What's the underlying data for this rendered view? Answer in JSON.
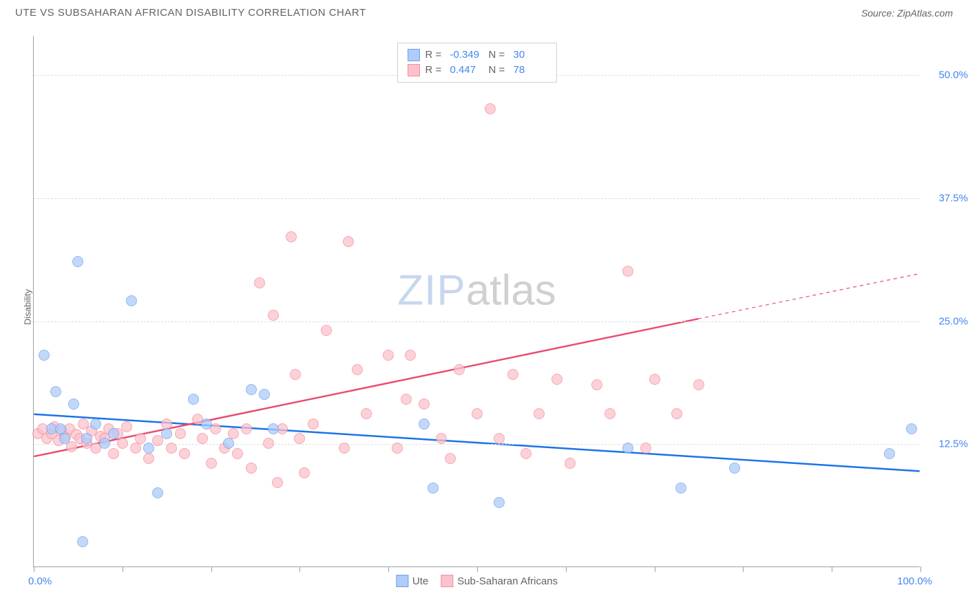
{
  "title": "UTE VS SUBSAHARAN AFRICAN DISABILITY CORRELATION CHART",
  "source": "Source: ZipAtlas.com",
  "ylabel": "Disability",
  "watermark_zip": "ZIP",
  "watermark_atlas": "atlas",
  "chart": {
    "type": "scatter",
    "background_color": "#ffffff",
    "grid_color": "#dadce0",
    "axis_color": "#9aa0a6",
    "xlim": [
      0,
      100
    ],
    "ylim": [
      0,
      54
    ],
    "ytick_values": [
      12.5,
      25.0,
      37.5,
      50.0
    ],
    "ytick_labels": [
      "12.5%",
      "25.0%",
      "37.5%",
      "50.0%"
    ],
    "xtick_positions": [
      0,
      10,
      20,
      30,
      40,
      50,
      60,
      70,
      80,
      90,
      100
    ],
    "xtick_label_left": "0.0%",
    "xtick_label_right": "100.0%",
    "tick_label_color": "#4285f4",
    "tick_label_fontsize": 15,
    "point_radius": 8,
    "point_opacity": 0.75
  },
  "series": [
    {
      "name": "Ute",
      "fill": "#aecbfa",
      "stroke": "#6fa1e8",
      "trend": {
        "x1": 0,
        "y1": 15.5,
        "x2": 100,
        "y2": 9.7,
        "color": "#1a73e8",
        "width": 2.5
      },
      "R": "-0.349",
      "N": "30",
      "points": [
        [
          1.2,
          21.5
        ],
        [
          2.0,
          14.0
        ],
        [
          2.5,
          17.8
        ],
        [
          3.0,
          14.0
        ],
        [
          3.5,
          13.0
        ],
        [
          4.5,
          16.5
        ],
        [
          5.0,
          31.0
        ],
        [
          5.5,
          2.5
        ],
        [
          6.0,
          13.0
        ],
        [
          7.0,
          14.5
        ],
        [
          8.0,
          12.5
        ],
        [
          9.0,
          13.5
        ],
        [
          11.0,
          27.0
        ],
        [
          13.0,
          12.0
        ],
        [
          14.0,
          7.5
        ],
        [
          15.0,
          13.5
        ],
        [
          18.0,
          17.0
        ],
        [
          19.5,
          14.5
        ],
        [
          22.0,
          12.5
        ],
        [
          24.5,
          18.0
        ],
        [
          26.0,
          17.5
        ],
        [
          27.0,
          14.0
        ],
        [
          44.0,
          14.5
        ],
        [
          45.0,
          8.0
        ],
        [
          52.5,
          6.5
        ],
        [
          67.0,
          12.0
        ],
        [
          73.0,
          8.0
        ],
        [
          79.0,
          10.0
        ],
        [
          96.5,
          11.5
        ],
        [
          99.0,
          14.0
        ]
      ]
    },
    {
      "name": "Sub-Saharan Africans",
      "fill": "#fbc2cc",
      "stroke": "#f28b9b",
      "trend": {
        "x1": 0,
        "y1": 11.2,
        "x2": 75,
        "y2": 25.2,
        "color": "#ea4c70",
        "width": 2.5,
        "dash_x1": 75,
        "dash_y1": 25.2,
        "dash_x2": 100,
        "dash_y2": 29.8
      },
      "R": "0.447",
      "N": "78",
      "points": [
        [
          0.5,
          13.5
        ],
        [
          1.0,
          14.0
        ],
        [
          1.5,
          13.0
        ],
        [
          2.0,
          13.5
        ],
        [
          2.3,
          14.2
        ],
        [
          2.8,
          12.8
        ],
        [
          3.2,
          13.8
        ],
        [
          3.6,
          13.2
        ],
        [
          4.0,
          14.0
        ],
        [
          4.3,
          12.2
        ],
        [
          4.8,
          13.4
        ],
        [
          5.2,
          13.0
        ],
        [
          5.6,
          14.5
        ],
        [
          6.0,
          12.5
        ],
        [
          6.5,
          13.8
        ],
        [
          7.0,
          12.0
        ],
        [
          7.5,
          13.2
        ],
        [
          8.0,
          13.0
        ],
        [
          8.5,
          14.0
        ],
        [
          9.0,
          11.5
        ],
        [
          9.5,
          13.5
        ],
        [
          10.0,
          12.5
        ],
        [
          10.5,
          14.2
        ],
        [
          11.5,
          12.0
        ],
        [
          12.0,
          13.0
        ],
        [
          13.0,
          11.0
        ],
        [
          14.0,
          12.8
        ],
        [
          15.0,
          14.5
        ],
        [
          15.5,
          12.0
        ],
        [
          16.5,
          13.5
        ],
        [
          17.0,
          11.5
        ],
        [
          18.5,
          15.0
        ],
        [
          19.0,
          13.0
        ],
        [
          20.0,
          10.5
        ],
        [
          20.5,
          14.0
        ],
        [
          21.5,
          12.0
        ],
        [
          22.5,
          13.5
        ],
        [
          23.0,
          11.5
        ],
        [
          24.0,
          14.0
        ],
        [
          24.5,
          10.0
        ],
        [
          25.5,
          28.8
        ],
        [
          26.5,
          12.5
        ],
        [
          27.0,
          25.5
        ],
        [
          27.5,
          8.5
        ],
        [
          28.0,
          14.0
        ],
        [
          29.0,
          33.5
        ],
        [
          29.5,
          19.5
        ],
        [
          30.0,
          13.0
        ],
        [
          30.5,
          9.5
        ],
        [
          31.5,
          14.5
        ],
        [
          33.0,
          24.0
        ],
        [
          35.0,
          12.0
        ],
        [
          35.5,
          33.0
        ],
        [
          36.5,
          20.0
        ],
        [
          37.5,
          15.5
        ],
        [
          40.0,
          21.5
        ],
        [
          41.0,
          12.0
        ],
        [
          42.0,
          17.0
        ],
        [
          42.5,
          21.5
        ],
        [
          44.0,
          16.5
        ],
        [
          46.0,
          13.0
        ],
        [
          47.0,
          11.0
        ],
        [
          48.0,
          20.0
        ],
        [
          50.0,
          15.5
        ],
        [
          51.5,
          46.5
        ],
        [
          52.5,
          13.0
        ],
        [
          54.0,
          19.5
        ],
        [
          55.5,
          11.5
        ],
        [
          57.0,
          15.5
        ],
        [
          59.0,
          19.0
        ],
        [
          60.5,
          10.5
        ],
        [
          63.5,
          18.5
        ],
        [
          65.0,
          15.5
        ],
        [
          67.0,
          30.0
        ],
        [
          69.0,
          12.0
        ],
        [
          70.0,
          19.0
        ],
        [
          72.5,
          15.5
        ],
        [
          75.0,
          18.5
        ]
      ]
    }
  ],
  "legend_bottom": {
    "items": [
      "Ute",
      "Sub-Saharan Africans"
    ]
  },
  "legend_top": {
    "r_label": "R =",
    "n_label": "N ="
  }
}
